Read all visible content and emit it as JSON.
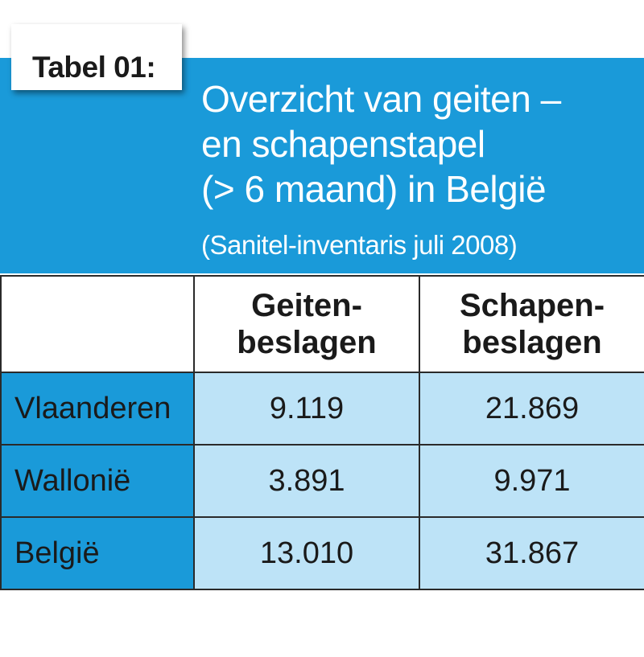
{
  "tag_label": "Tabel 01:",
  "title_lines": [
    "Overzicht van geiten –",
    "en schapenstapel",
    "(> 6 maand) in België"
  ],
  "subtitle": "(Sanitel-inventaris juli 2008)",
  "colors": {
    "panel_blue": "#1a9ad9",
    "cell_light_blue": "#bde3f7"
  },
  "table": {
    "headers": [
      {
        "line1": "",
        "line2": ""
      },
      {
        "line1": "Geiten-",
        "line2": "beslagen"
      },
      {
        "line1": "Schapen-",
        "line2": "beslagen"
      }
    ],
    "rows": [
      {
        "region": "Vlaanderen",
        "geiten": "9.119",
        "schapen": "21.869"
      },
      {
        "region": "Wallonië",
        "geiten": "3.891",
        "schapen": "9.971"
      },
      {
        "region": "België",
        "geiten": "13.010",
        "schapen": "31.867"
      }
    ]
  }
}
